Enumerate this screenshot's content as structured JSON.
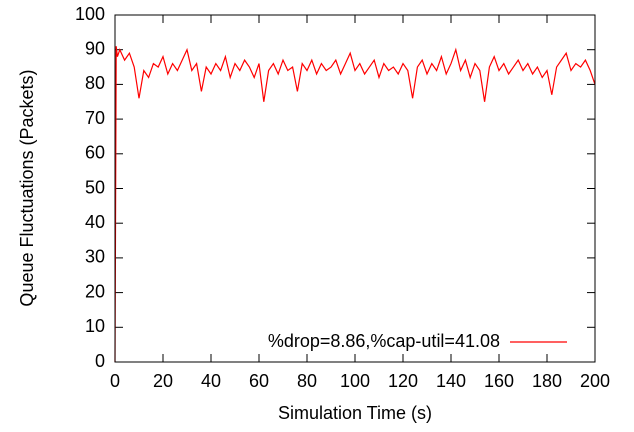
{
  "chart_data": {
    "type": "line",
    "xlabel": "Simulation Time (s)",
    "ylabel": "Queue Fluctuations (Packets)",
    "x": [
      0,
      0.5,
      1,
      2,
      4,
      6,
      8,
      10,
      12,
      14,
      16,
      18,
      20,
      22,
      24,
      26,
      28,
      30,
      32,
      34,
      36,
      38,
      40,
      42,
      44,
      46,
      48,
      50,
      52,
      54,
      56,
      58,
      60,
      62,
      64,
      66,
      68,
      70,
      72,
      74,
      76,
      78,
      80,
      82,
      84,
      86,
      88,
      90,
      92,
      94,
      96,
      98,
      100,
      102,
      104,
      106,
      108,
      110,
      112,
      114,
      116,
      118,
      120,
      122,
      124,
      126,
      128,
      130,
      132,
      134,
      136,
      138,
      140,
      142,
      144,
      146,
      148,
      150,
      152,
      154,
      156,
      158,
      160,
      162,
      164,
      166,
      168,
      170,
      172,
      174,
      176,
      178,
      180,
      182,
      184,
      186,
      188,
      190,
      192,
      194,
      196,
      198,
      200
    ],
    "series": [
      {
        "name": "%drop=8.86,%cap-util=41.08",
        "color": "#ff0000",
        "values": [
          0,
          91,
          88,
          90,
          87,
          89,
          85,
          76,
          84,
          82,
          86,
          85,
          88,
          83,
          86,
          84,
          87,
          90,
          84,
          86,
          78,
          85,
          83,
          86,
          84,
          88,
          82,
          86,
          84,
          87,
          85,
          82,
          86,
          75,
          84,
          86,
          83,
          87,
          84,
          85,
          78,
          86,
          84,
          87,
          83,
          86,
          84,
          85,
          87,
          83,
          86,
          89,
          84,
          86,
          83,
          85,
          87,
          82,
          86,
          84,
          85,
          83,
          86,
          84,
          76,
          85,
          87,
          83,
          86,
          84,
          88,
          83,
          86,
          90,
          84,
          87,
          82,
          86,
          84,
          75,
          85,
          88,
          84,
          86,
          83,
          85,
          87,
          84,
          86,
          83,
          85,
          82,
          84,
          77,
          85,
          87,
          89,
          84,
          86,
          85,
          87,
          84,
          80
        ]
      }
    ],
    "xlim": [
      0,
      200
    ],
    "xticks": [
      0,
      20,
      40,
      60,
      80,
      100,
      120,
      140,
      160,
      180,
      200
    ],
    "ylim": [
      0,
      100
    ],
    "yticks": [
      0,
      10,
      20,
      30,
      40,
      50,
      60,
      70,
      80,
      90,
      100
    ],
    "legend": "bottom right"
  }
}
